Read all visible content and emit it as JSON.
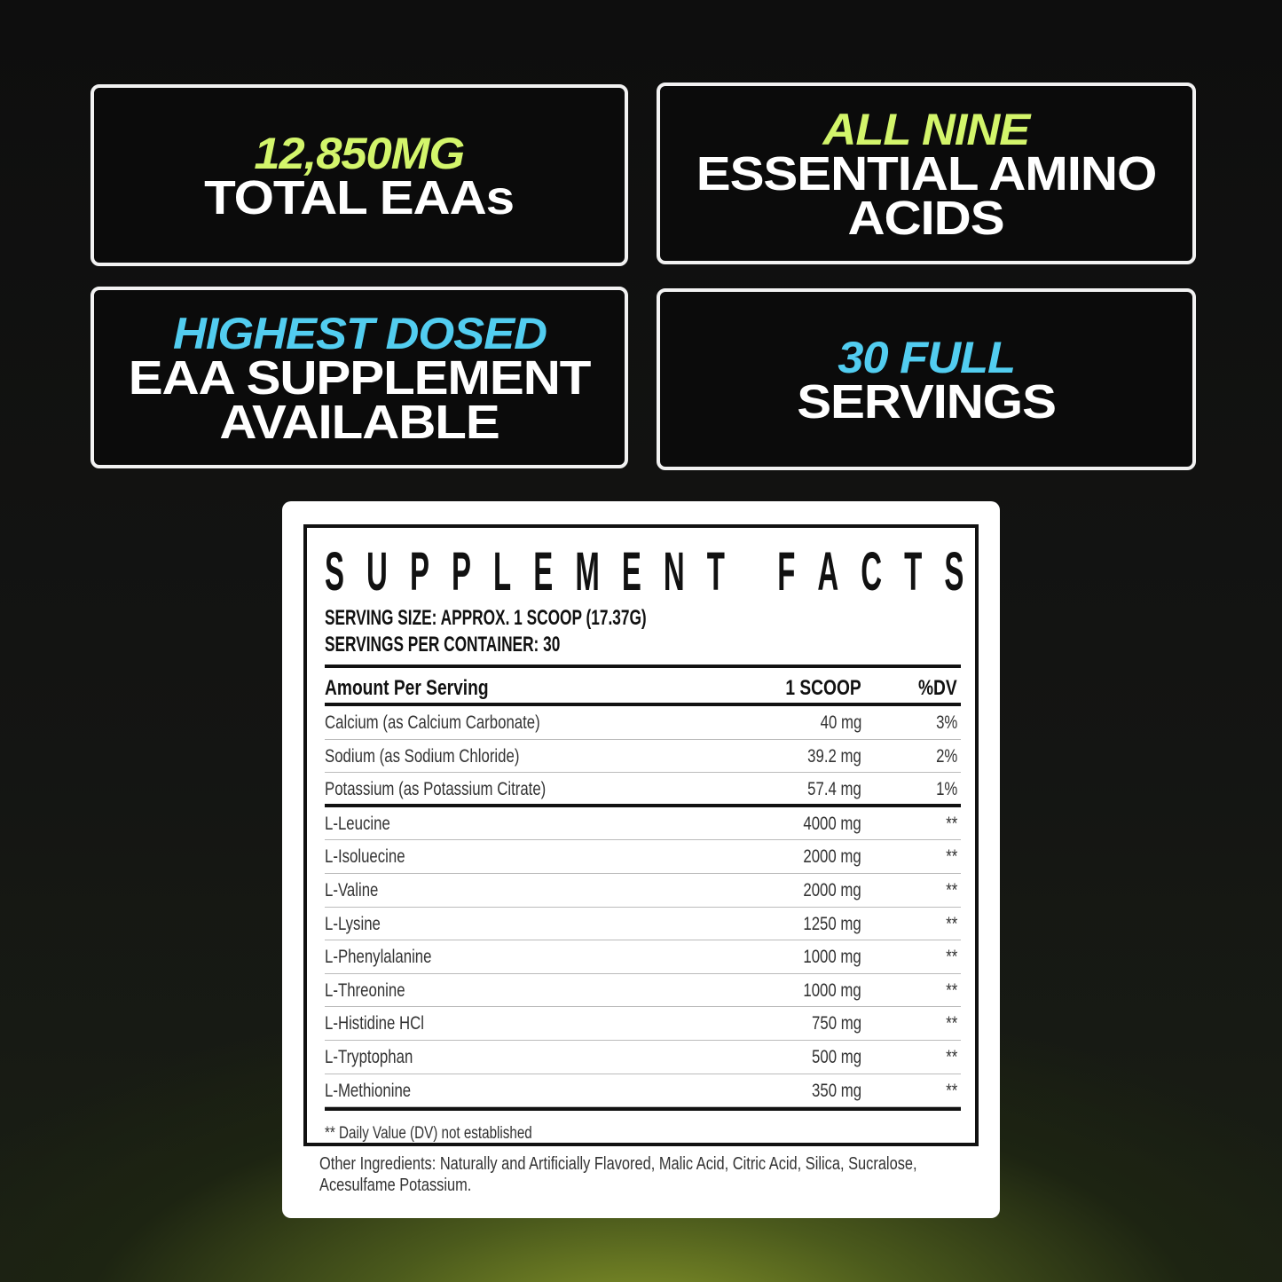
{
  "colors": {
    "green": "#d3f56b",
    "blue": "#52cdf0",
    "white": "#ffffff"
  },
  "features": [
    {
      "highlight": "12,850MG",
      "lines": [
        "TOTAL EAAs"
      ],
      "color": "green"
    },
    {
      "highlight": "ALL NINE",
      "lines": [
        "ESSENTIAL AMINO",
        "ACIDS"
      ],
      "color": "green"
    },
    {
      "highlight": "HIGHEST DOSED",
      "lines": [
        "EAA SUPPLEMENT",
        "AVAILABLE"
      ],
      "color": "blue"
    },
    {
      "highlight": "30 FULL",
      "lines": [
        "SERVINGS"
      ],
      "color": "blue"
    }
  ],
  "facts": {
    "title": "SUPPLEMENT FACTS",
    "serving_size": "SERVING SIZE: APPROX. 1 SCOOP (17.37G)",
    "servings_per_container": "SERVINGS PER CONTAINER: 30",
    "header": {
      "name": "Amount Per Serving",
      "amount": "1 SCOOP",
      "dv": "%DV"
    },
    "minerals": [
      {
        "name": "Calcium (as Calcium Carbonate)",
        "amount": "40 mg",
        "dv": "3%"
      },
      {
        "name": "Sodium (as Sodium Chloride)",
        "amount": "39.2 mg",
        "dv": "2%"
      },
      {
        "name": "Potassium (as Potassium Citrate)",
        "amount": "57.4 mg",
        "dv": "1%"
      }
    ],
    "aminos": [
      {
        "name": "L-Leucine",
        "amount": "4000 mg",
        "dv": "**"
      },
      {
        "name": "L-Isoluecine",
        "amount": "2000 mg",
        "dv": "**"
      },
      {
        "name": "L-Valine",
        "amount": "2000 mg",
        "dv": "**"
      },
      {
        "name": "L-Lysine",
        "amount": "1250 mg",
        "dv": "**"
      },
      {
        "name": "L-Phenylalanine",
        "amount": "1000 mg",
        "dv": "**"
      },
      {
        "name": "L-Threonine",
        "amount": "1000 mg",
        "dv": "**"
      },
      {
        "name": "L-Histidine HCl",
        "amount": "750 mg",
        "dv": "**"
      },
      {
        "name": "L-Tryptophan",
        "amount": "500 mg",
        "dv": "**"
      },
      {
        "name": "L-Methionine",
        "amount": "350 mg",
        "dv": "**"
      }
    ],
    "footnote": "** Daily Value (DV) not established",
    "other_ingredients": "Other Ingredients: Naturally and Artificially Flavored, Malic Acid, Citric Acid, Silica, Sucralose, Acesulfame Potassium."
  }
}
